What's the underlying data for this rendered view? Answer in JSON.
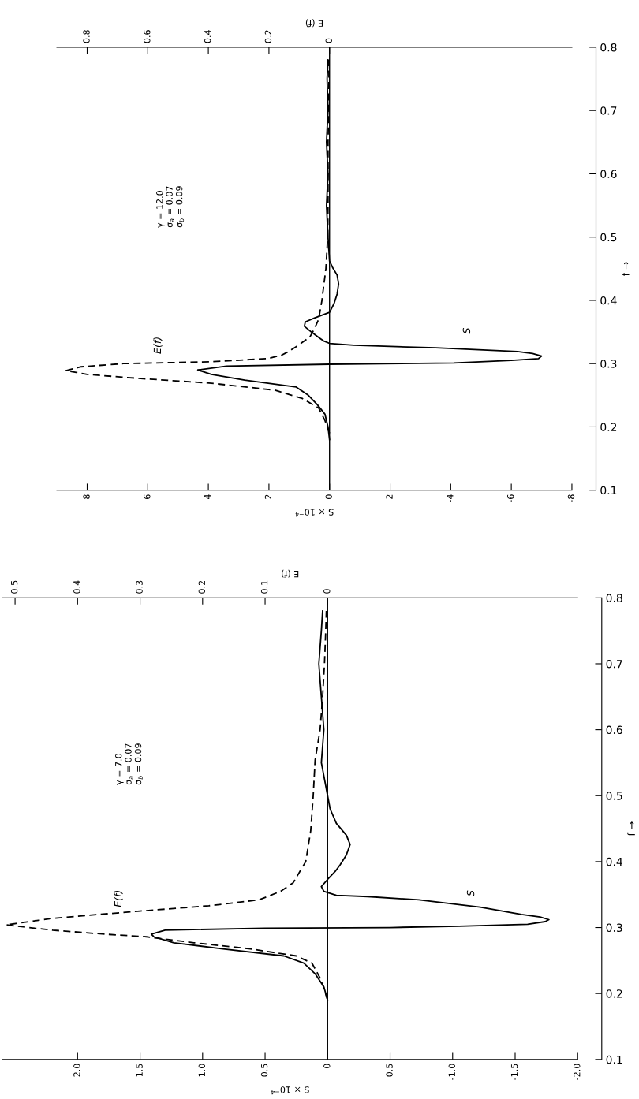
{
  "chart_data": [
    {
      "type": "line",
      "xlabel": "S × 10$^{−4}$",
      "x2label": "E (f)",
      "ylabel": "f →",
      "ylim": [
        0.1,
        0.8
      ],
      "yticks": [
        0.1,
        0.2,
        0.3,
        0.4,
        0.5,
        0.6,
        0.7,
        0.8
      ],
      "xlim": [
        9,
        -8
      ],
      "xticks": [
        8,
        6,
        4,
        2,
        0,
        -2,
        -4,
        -6,
        -8
      ],
      "x2lim": [
        0.9,
        -0.8
      ],
      "x2ticks": [
        0.8,
        0.6,
        0.4,
        0.2,
        0
      ],
      "grid": false,
      "legend": false,
      "marker": "none",
      "ref_lines": [
        {
          "axis": "x",
          "value": 0,
          "color": "#000000"
        }
      ],
      "annotations": [
        "γ = 12.0\nσ$_{a}$ = 0.07\nσ$_{b}$ = 0.09"
      ],
      "series": [
        {
          "name": "S",
          "color": "#000000",
          "line_style": "solid",
          "values": [
            0.18,
            0.2,
            0.22,
            0.235,
            0.25,
            0.263,
            0.274,
            0.283,
            0.29,
            0.296,
            0.299,
            0.301,
            0.305,
            0.308,
            0.312,
            0.316,
            0.319,
            0.325,
            0.329,
            0.332,
            0.336,
            0.341,
            0.35,
            0.359,
            0.366,
            0.372,
            0.381,
            0.395,
            0.41,
            0.426,
            0.44,
            0.452,
            0.462,
            0.5,
            0.55,
            0.6,
            0.65,
            0.7,
            0.75,
            0.78
          ],
          "x": [
            0,
            0.05,
            0.15,
            0.4,
            0.7,
            1.1,
            2.8,
            3.9,
            4.35,
            3.4,
            0,
            -4.1,
            -6.0,
            -6.9,
            -7.0,
            -6.7,
            -6.2,
            -3.5,
            -0.8,
            0,
            0.2,
            0.35,
            0.6,
            0.83,
            0.8,
            0.5,
            0,
            -0.15,
            -0.25,
            -0.3,
            -0.25,
            -0.1,
            0,
            0.05,
            0.1,
            0.05,
            0.1,
            0.05,
            0.08,
            0.05
          ]
        },
        {
          "name": "E(f)",
          "color": "#000000",
          "line_style": "dashed",
          "axis": "x2",
          "values": [
            0.19,
            0.21,
            0.23,
            0.245,
            0.258,
            0.269,
            0.277,
            0.283,
            0.289,
            0.295,
            0.3,
            0.303,
            0.308,
            0.313,
            0.319,
            0.33,
            0.342,
            0.355,
            0.37,
            0.4,
            0.42,
            0.45,
            0.5,
            0.55,
            0.6,
            0.65,
            0.7,
            0.75,
            0.78
          ],
          "x": [
            0,
            0.015,
            0.036,
            0.09,
            0.18,
            0.39,
            0.64,
            0.8,
            0.87,
            0.82,
            0.68,
            0.39,
            0.205,
            0.16,
            0.135,
            0.1,
            0.065,
            0.05,
            0.036,
            0.025,
            0.02,
            0.012,
            0.006,
            0.005,
            0.005,
            0.005,
            0.003,
            0.002,
            0.002
          ]
        }
      ]
    },
    {
      "type": "line",
      "xlabel": "S × 10$^{−4}$",
      "x2label": "E (f)",
      "ylabel": "f →",
      "ylim": [
        0.1,
        0.8
      ],
      "yticks": [
        0.1,
        0.2,
        0.3,
        0.4,
        0.5,
        0.6,
        0.7,
        0.8
      ],
      "xlim": [
        2.6,
        -2
      ],
      "xticks": [
        {
          "value": 2,
          "label": "2.0"
        },
        1.5,
        {
          "value": 1,
          "label": "1.0"
        },
        0.5,
        0,
        {
          "value": -0.5,
          "label": "-0.5"
        },
        {
          "value": -1,
          "label": "-1.0"
        },
        {
          "value": -1.5,
          "label": "-1.5"
        },
        {
          "value": -2,
          "label": "-2.0"
        }
      ],
      "x2lim": [
        0.52,
        -0.4
      ],
      "x2ticks": [
        0.5,
        0.4,
        0.3,
        0.2,
        0.1,
        0
      ],
      "grid": false,
      "legend": false,
      "marker": "none",
      "ref_lines": [
        {
          "axis": "x",
          "value": 0,
          "color": "#000000"
        }
      ],
      "annotations": [
        "γ = 7.0\nσ$_{a}$ = 0.07\nσ$_{b}$ = 0.09"
      ],
      "series": [
        {
          "name": "S",
          "color": "#000000",
          "line_style": "solid",
          "values": [
            0.19,
            0.21,
            0.23,
            0.246,
            0.257,
            0.268,
            0.277,
            0.286,
            0.29,
            0.296,
            0.299,
            0.3,
            0.302,
            0.305,
            0.309,
            0.312,
            0.316,
            0.32,
            0.331,
            0.342,
            0.347,
            0.349,
            0.355,
            0.362,
            0.373,
            0.385,
            0.395,
            0.41,
            0.426,
            0.44,
            0.458,
            0.48,
            0.5,
            0.55,
            0.6,
            0.65,
            0.7,
            0.75,
            0.78
          ],
          "x": [
            0,
            0.03,
            0.1,
            0.19,
            0.35,
            0.85,
            1.23,
            1.39,
            1.41,
            1.3,
            0.5,
            -0.5,
            -1.05,
            -1.6,
            -1.74,
            -1.77,
            -1.7,
            -1.55,
            -1.22,
            -0.73,
            -0.32,
            -0.07,
            0.03,
            0.05,
            0,
            -0.06,
            -0.1,
            -0.15,
            -0.18,
            -0.15,
            -0.07,
            -0.02,
            0,
            0.05,
            0.03,
            0.05,
            0.07,
            0.05,
            0.04
          ]
        },
        {
          "name": "E(f)",
          "color": "#000000",
          "line_style": "dashed",
          "axis": "x2",
          "values": [
            0.19,
            0.22,
            0.246,
            0.257,
            0.268,
            0.277,
            0.286,
            0.29,
            0.296,
            0.304,
            0.314,
            0.325,
            0.333,
            0.342,
            0.355,
            0.368,
            0.4,
            0.447,
            0.5,
            0.554,
            0.6,
            0.65,
            0.7,
            0.75,
            0.78
          ],
          "x": [
            0,
            0.01,
            0.025,
            0.05,
            0.126,
            0.214,
            0.29,
            0.357,
            0.44,
            0.514,
            0.44,
            0.3,
            0.19,
            0.11,
            0.075,
            0.055,
            0.035,
            0.027,
            0.023,
            0.02,
            0.012,
            0.008,
            0.005,
            0.003,
            0.002
          ]
        }
      ]
    }
  ]
}
